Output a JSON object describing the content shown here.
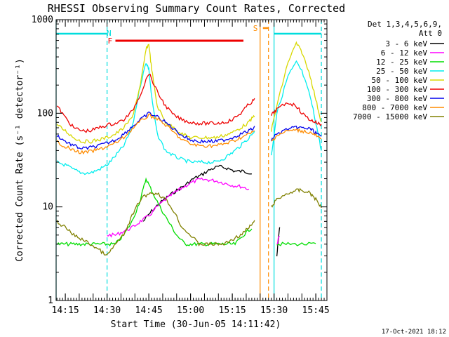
{
  "chart_data": {
    "type": "line",
    "title": "RHESSI Observing Summary Count Rates, Corrected",
    "xlabel": "Start Time (30-Jun-05 14:11:42)",
    "ylabel": "Corrected Count Rate (s⁻¹ detector⁻¹)",
    "y_scale": "log",
    "ylim": [
      1,
      1000
    ],
    "y_ticks": [
      "1",
      "10",
      "100",
      "1000"
    ],
    "xlim": [
      "14:11:42",
      "15:49"
    ],
    "x_ticks": [
      "14:15",
      "14:30",
      "14:45",
      "15:00",
      "15:15",
      "15:30",
      "15:45"
    ],
    "grid": false,
    "legend_position": "top-right",
    "legend_header": [
      "Det 1,3,4,5,6,9,",
      "Att 0"
    ],
    "footer_date": "17-Oct-2021 18:12",
    "colors": {
      "3-6": "#000000",
      "6-12": "#ff00ff",
      "12-25": "#00dd00",
      "25-50": "#00eeee",
      "50-100": "#d8d800",
      "100-300": "#ee0000",
      "300-800": "#0000ee",
      "800-7000": "#ff8c00",
      "7000-15000": "#808000",
      "N": "#00dddd",
      "F": "#ee0000",
      "S": "#ff8c00"
    },
    "series": [
      {
        "name": "3 - 6 keV",
        "color": "#000000",
        "x": [
          "14:43",
          "14:46",
          "14:49",
          "14:52",
          "14:55",
          "14:58",
          "15:01",
          "15:04",
          "15:07",
          "15:10",
          "15:13",
          "15:16",
          "15:19",
          "15:22",
          "15:31",
          "15:32"
        ],
        "y": [
          7,
          9,
          11,
          13,
          15,
          17,
          20,
          22,
          25,
          27,
          26,
          24,
          24,
          23,
          3,
          6
        ]
      },
      {
        "name": "6 - 12 keV",
        "color": "#ff00ff",
        "x": [
          "14:30",
          "14:33",
          "14:36",
          "14:39",
          "14:42",
          "14:45",
          "14:48",
          "14:51",
          "14:54",
          "14:57",
          "15:00",
          "15:03",
          "15:06",
          "15:09",
          "15:12",
          "15:15",
          "15:18",
          "15:21",
          "15:31",
          "15:32"
        ],
        "y": [
          5,
          5,
          5.5,
          6,
          7,
          8,
          10,
          12,
          14,
          16,
          18,
          19.5,
          19.5,
          19,
          18,
          17,
          16.5,
          15.5,
          4,
          5
        ]
      },
      {
        "name": "12 - 25 keV",
        "color": "#00dd00",
        "x": [
          "14:12",
          "14:15",
          "14:18",
          "14:21",
          "14:24",
          "14:27",
          "14:30",
          "14:33",
          "14:36",
          "14:39",
          "14:42",
          "14:44",
          "14:46",
          "14:49",
          "14:52",
          "14:55",
          "14:58",
          "15:01",
          "15:04",
          "15:07",
          "15:10",
          "15:13",
          "15:16",
          "15:19",
          "15:22",
          "15:31",
          "15:35",
          "15:40",
          "15:45"
        ],
        "y": [
          4,
          4,
          4,
          4,
          4,
          4,
          4,
          4,
          5,
          7,
          12,
          20,
          15,
          10,
          7,
          5,
          4,
          4,
          4,
          4,
          4,
          4,
          4,
          5,
          6,
          4,
          4,
          4,
          4
        ]
      },
      {
        "name": "25 - 50 keV",
        "color": "#00eeee",
        "x": [
          "14:12",
          "14:15",
          "14:18",
          "14:21",
          "14:24",
          "14:27",
          "14:30",
          "14:33",
          "14:36",
          "14:39",
          "14:42",
          "14:44",
          "14:45",
          "14:46",
          "14:48",
          "14:51",
          "14:54",
          "14:57",
          "15:00",
          "15:03",
          "15:06",
          "15:09",
          "15:12",
          "15:15",
          "15:18",
          "15:21",
          "15:23",
          "15:29",
          "15:31",
          "15:35",
          "15:38",
          "15:40",
          "15:43",
          "15:45",
          "15:47"
        ],
        "y": [
          30,
          28,
          25,
          23,
          23,
          25,
          28,
          35,
          45,
          70,
          200,
          350,
          300,
          150,
          60,
          40,
          35,
          32,
          30,
          30,
          30,
          30,
          33,
          38,
          45,
          55,
          65,
          35,
          100,
          250,
          350,
          280,
          150,
          80,
          40
        ]
      },
      {
        "name": "50 - 100 keV",
        "color": "#d8d800",
        "x": [
          "14:12",
          "14:15",
          "14:18",
          "14:21",
          "14:24",
          "14:27",
          "14:30",
          "14:33",
          "14:36",
          "14:39",
          "14:42",
          "14:44",
          "14:45",
          "14:46",
          "14:48",
          "14:51",
          "14:54",
          "14:57",
          "15:00",
          "15:03",
          "15:06",
          "15:09",
          "15:12",
          "15:15",
          "15:18",
          "15:21",
          "15:23",
          "15:29",
          "15:31",
          "15:35",
          "15:38",
          "15:40",
          "15:43",
          "15:45",
          "15:47"
        ],
        "y": [
          75,
          65,
          55,
          50,
          50,
          52,
          55,
          60,
          70,
          90,
          200,
          480,
          550,
          300,
          120,
          80,
          70,
          60,
          55,
          55,
          55,
          55,
          58,
          62,
          70,
          80,
          95,
          65,
          120,
          350,
          560,
          450,
          250,
          140,
          80
        ]
      },
      {
        "name": "100 - 300 keV",
        "color": "#ee0000",
        "x": [
          "14:12",
          "14:15",
          "14:18",
          "14:21",
          "14:24",
          "14:27",
          "14:30",
          "14:33",
          "14:36",
          "14:39",
          "14:42",
          "14:45",
          "14:48",
          "14:51",
          "14:54",
          "14:57",
          "15:00",
          "15:03",
          "15:06",
          "15:09",
          "15:12",
          "15:15",
          "15:18",
          "15:21",
          "15:23",
          "15:29",
          "15:31",
          "15:35",
          "15:38",
          "15:40",
          "15:43",
          "15:45",
          "15:47"
        ],
        "y": [
          120,
          90,
          70,
          65,
          65,
          70,
          75,
          78,
          85,
          105,
          160,
          270,
          170,
          120,
          95,
          85,
          80,
          78,
          78,
          78,
          80,
          85,
          100,
          125,
          140,
          95,
          110,
          130,
          120,
          100,
          85,
          80,
          75
        ]
      },
      {
        "name": "300 - 800 keV",
        "color": "#0000ee",
        "x": [
          "14:12",
          "14:15",
          "14:18",
          "14:21",
          "14:24",
          "14:27",
          "14:30",
          "14:33",
          "14:36",
          "14:39",
          "14:42",
          "14:45",
          "14:48",
          "14:51",
          "14:54",
          "14:57",
          "15:00",
          "15:03",
          "15:06",
          "15:09",
          "15:12",
          "15:15",
          "15:18",
          "15:21",
          "15:23",
          "15:29",
          "15:31",
          "15:35",
          "15:38",
          "15:40",
          "15:43",
          "15:45",
          "15:47"
        ],
        "y": [
          58,
          50,
          45,
          42,
          43,
          45,
          48,
          52,
          60,
          72,
          85,
          100,
          92,
          80,
          68,
          58,
          52,
          50,
          50,
          50,
          52,
          55,
          60,
          65,
          70,
          52,
          60,
          68,
          70,
          70,
          68,
          62,
          55
        ]
      },
      {
        "name": "800 - 7000 keV",
        "color": "#ff8c00",
        "x": [
          "14:12",
          "14:15",
          "14:18",
          "14:21",
          "14:24",
          "14:27",
          "14:30",
          "14:33",
          "14:36",
          "14:39",
          "14:42",
          "14:45",
          "14:48",
          "14:51",
          "14:54",
          "14:57",
          "15:00",
          "15:03",
          "15:06",
          "15:09",
          "15:12",
          "15:15",
          "15:18",
          "15:21",
          "15:23",
          "15:29",
          "15:31",
          "15:35",
          "15:38",
          "15:40",
          "15:43",
          "15:45",
          "15:47"
        ],
        "y": [
          50,
          44,
          40,
          38,
          39,
          41,
          44,
          48,
          55,
          68,
          82,
          95,
          88,
          75,
          62,
          52,
          47,
          45,
          45,
          45,
          47,
          50,
          55,
          60,
          64,
          50,
          58,
          65,
          66,
          65,
          62,
          58,
          52
        ]
      },
      {
        "name": "7000 - 15000 keV",
        "color": "#808000",
        "x": [
          "14:12",
          "14:15",
          "14:18",
          "14:21",
          "14:24",
          "14:27",
          "14:30",
          "14:33",
          "14:36",
          "14:39",
          "14:42",
          "14:45",
          "14:48",
          "14:51",
          "14:54",
          "14:57",
          "15:00",
          "15:03",
          "15:06",
          "15:09",
          "15:12",
          "15:15",
          "15:18",
          "15:21",
          "15:23",
          "15:29",
          "15:31",
          "15:35",
          "15:38",
          "15:40",
          "15:43",
          "15:45",
          "15:47"
        ],
        "y": [
          7,
          6,
          5,
          4.5,
          4,
          3.5,
          3,
          4,
          5,
          8,
          12,
          14,
          14,
          12,
          9,
          6,
          5,
          4,
          4,
          4,
          4,
          4.5,
          5,
          6,
          7,
          10,
          12,
          14,
          15,
          15,
          14,
          12,
          10
        ]
      }
    ],
    "annotations": [
      {
        "label": "N",
        "color": "#00dddd",
        "segments": [
          [
            "14:11:42",
            "14:30"
          ],
          [
            "15:30",
            "15:47"
          ]
        ]
      },
      {
        "label": "F",
        "color": "#ee0000",
        "segments": [
          [
            "14:33",
            "15:19"
          ]
        ]
      },
      {
        "label": "S",
        "color": "#ff8c00",
        "segments": [
          [
            "15:26",
            "15:28"
          ]
        ]
      }
    ],
    "vertical_markers": [
      {
        "time": "14:11:42",
        "color": "#00dddd",
        "style": "solid"
      },
      {
        "time": "14:30",
        "color": "#00dddd",
        "style": "dashed"
      },
      {
        "time": "15:25",
        "color": "#ff8c00",
        "style": "solid"
      },
      {
        "time": "15:28",
        "color": "#ff8c00",
        "style": "dashed"
      },
      {
        "time": "15:30",
        "color": "#00dddd",
        "style": "solid"
      },
      {
        "time": "15:47",
        "color": "#00dddd",
        "style": "dashed"
      }
    ]
  }
}
